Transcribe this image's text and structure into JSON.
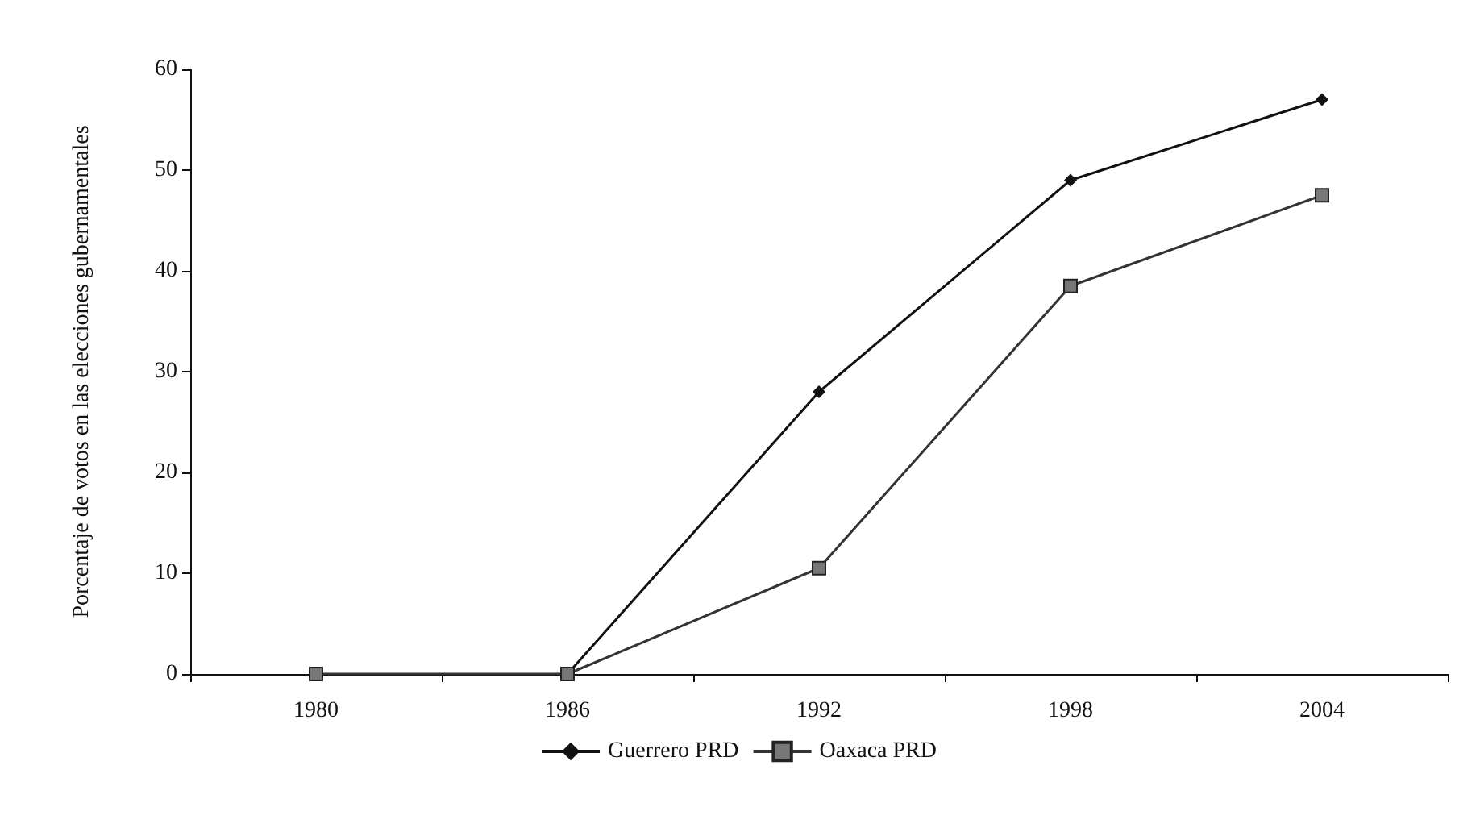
{
  "chart_data": {
    "type": "line",
    "ylabel": "Porcentaje de votos en las elecciones gubernamentales",
    "categories": [
      "1980",
      "1986",
      "1992",
      "1998",
      "2004"
    ],
    "series": [
      {
        "name": "Guerrero PRD",
        "color": "#111111",
        "marker": "diamond",
        "values": [
          null,
          0,
          28,
          49,
          57
        ]
      },
      {
        "name": "Oaxaca PRD",
        "color": "#777777",
        "marker": "square",
        "values": [
          0,
          0,
          10.5,
          38.5,
          47.5
        ]
      }
    ],
    "ylim": [
      0,
      60
    ],
    "yticks": [
      0,
      10,
      20,
      30,
      40,
      50,
      60
    ],
    "grid": false,
    "legend": "bottom"
  }
}
